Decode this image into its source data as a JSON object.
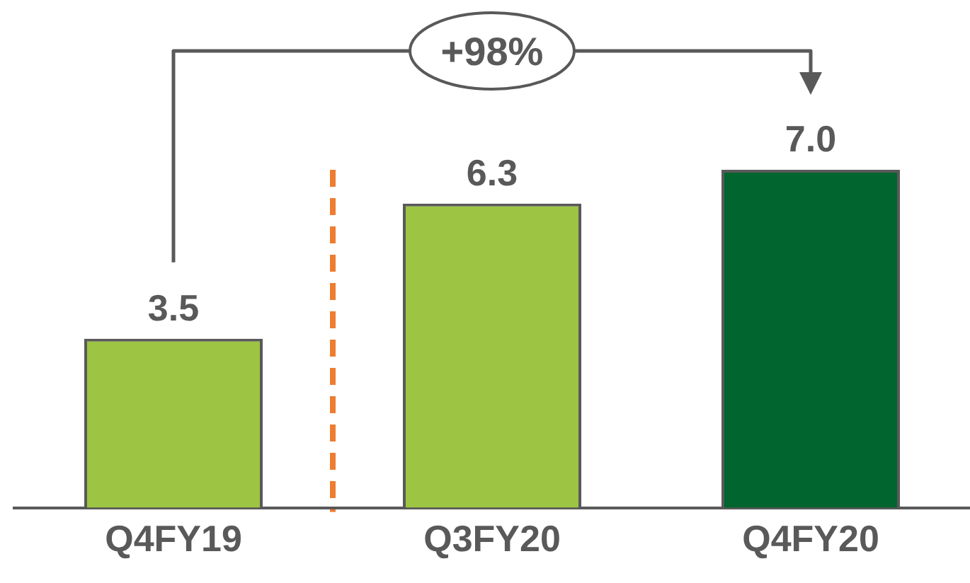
{
  "chart_data": {
    "type": "bar",
    "categories": [
      "Q4FY19",
      "Q3FY20",
      "Q4FY20"
    ],
    "values": [
      3.5,
      6.3,
      7.0
    ],
    "value_labels": [
      "3.5",
      "6.3",
      "7.0"
    ],
    "colors": [
      "#9dc443",
      "#9dc443",
      "#00652e"
    ],
    "tick_labels": "x",
    "annotations": [
      "+98%"
    ]
  }
}
